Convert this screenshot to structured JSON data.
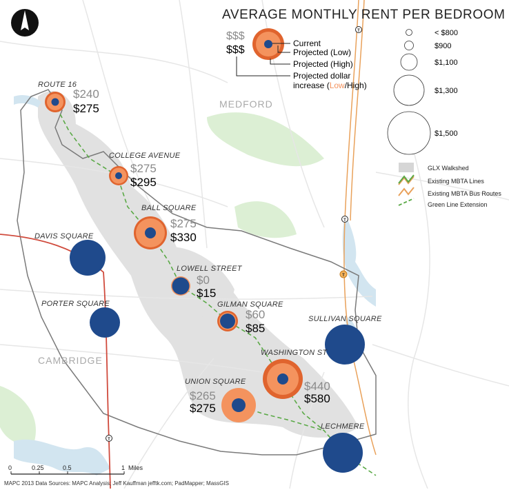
{
  "title": "AVERAGE MONTHLY RENT PER BEDROOM",
  "places": [
    "MEDFORD",
    "CAMBRIDGE"
  ],
  "stations": [
    {
      "name": "ROUTE 16",
      "low": "$240",
      "high": "$275"
    },
    {
      "name": "COLLEGE AVENUE",
      "low": "$275",
      "high": "$295"
    },
    {
      "name": "BALL SQUARE",
      "low": "$275",
      "high": "$330"
    },
    {
      "name": "DAVIS SQUARE"
    },
    {
      "name": "LOWELL STREET",
      "low": "$0",
      "high": "$15"
    },
    {
      "name": "PORTER SQUARE"
    },
    {
      "name": "GILMAN SQUARE",
      "low": "$60",
      "high": "$85"
    },
    {
      "name": "SULLIVAN SQUARE"
    },
    {
      "name": "WASHINGTON ST",
      "low": "$440",
      "high": "$580"
    },
    {
      "name": "UNION SQUARE",
      "low": "$265",
      "high": "$275"
    },
    {
      "name": "LECHMERE"
    }
  ],
  "key": {
    "low_sym": "$$$",
    "high_sym": "$$$",
    "current": "Current",
    "proj_low": "Projected (Low)",
    "proj_high": "Projected (High)",
    "dollar_1": "Projected dollar",
    "dollar_2a": "increase (",
    "dollar_low": "Low",
    "dollar_sep": "/",
    "dollar_high": "High",
    "dollar_end": ")"
  },
  "size_legend": [
    "< $800",
    "$900",
    "$1,100",
    "$1,300",
    "$1,500"
  ],
  "layers_legend": [
    "GLX Walkshed",
    "Existing MBTA Lines",
    "Existing MBTA Bus Routes",
    "Green Line Extension"
  ],
  "scale": {
    "ticks": [
      "0",
      "0.25",
      "0.5",
      "1"
    ],
    "unit": "Miles"
  },
  "transit_marker": "T",
  "credits": "MAPC 2013 Data Sources: MAPC Analysis; Jeff Kauffman jefftk.com; PadMapper; MassGIS",
  "colors": {
    "navy": "#1f4a8c",
    "orange": "#f4935e",
    "dark_orange": "#e0642e",
    "green": "#5aa946",
    "walkshed": "#dcdcdc",
    "water": "#cfe2ee",
    "park": "#d9ecd2",
    "red_line": "#d04a3c",
    "bus": "#e9a15a"
  }
}
